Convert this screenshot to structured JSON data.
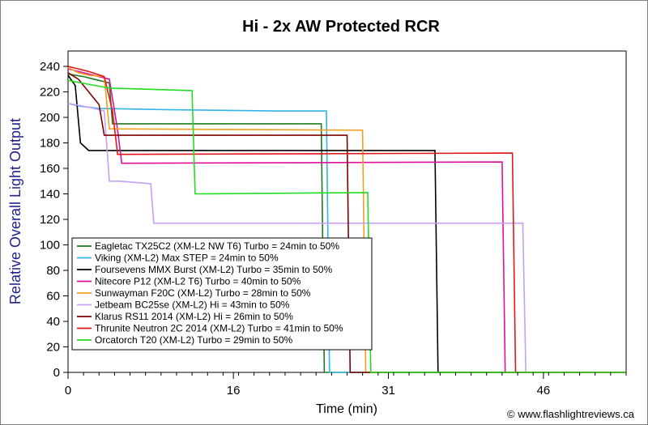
{
  "chart_data": {
    "type": "line",
    "title": "Hi - 2x AW Protected RCR",
    "xlabel": "Time (min)",
    "ylabel": "Relative Overall Light Output",
    "xlim": [
      0,
      54
    ],
    "ylim": [
      0,
      240
    ],
    "x_ticks": [
      0,
      16,
      31,
      46
    ],
    "y_ticks": [
      0,
      20,
      40,
      60,
      80,
      100,
      120,
      140,
      160,
      180,
      200,
      220,
      240
    ],
    "grid": false,
    "legend_position": "bottom-left",
    "credit": "© www.flashlightreviews.ca",
    "series": [
      {
        "name": "Eagletac TX25C2 (XM-L2 NW T6) Turbo = 24min to 50%",
        "color": "#1f7a1f",
        "x": [
          0,
          1.5,
          2.5,
          3,
          4,
          4.3,
          24.5,
          24.8,
          54
        ],
        "y": [
          234,
          232,
          230,
          229,
          227,
          195,
          195,
          0,
          0
        ]
      },
      {
        "name": "Viking  (XM-L2) Max STEP = 24min to 50%",
        "color": "#33b3e6",
        "x": [
          0,
          1,
          2,
          3,
          10,
          20,
          25,
          25.3,
          54
        ],
        "y": [
          211,
          209,
          208,
          207,
          206,
          205,
          205,
          0,
          0
        ]
      },
      {
        "name": "Foursevens MMX Burst (XM-L2) Turbo = 35min to 50%",
        "color": "#000000",
        "x": [
          0,
          0.7,
          1.2,
          2,
          35.5,
          35.8,
          54
        ],
        "y": [
          233,
          225,
          180,
          174,
          174,
          0,
          0
        ]
      },
      {
        "name": "Nitecore P12 (XM-L2 T6) Turbo = 40min to 50%",
        "color": "#e0109a",
        "x": [
          0,
          2,
          4,
          4.8,
          5.2,
          42,
          42.3,
          54
        ],
        "y": [
          238,
          234,
          230,
          190,
          164,
          165,
          0,
          0
        ]
      },
      {
        "name": "Sunwayman F20C (XM-L2) Turbo = 28min to 50%",
        "color": "#f0a020",
        "x": [
          0,
          1,
          2,
          3.5,
          4,
          28.5,
          28.8,
          54
        ],
        "y": [
          239,
          235,
          233,
          232,
          191,
          190,
          0,
          0
        ]
      },
      {
        "name": "Jetbeam BC25se (XM-L2) Hi = 43min to 50%",
        "color": "#c8a0f0",
        "x": [
          0,
          2,
          3.5,
          4,
          5,
          8,
          8.3,
          44,
          44.3,
          54
        ],
        "y": [
          211,
          208,
          205,
          150,
          150,
          148,
          117,
          117,
          0,
          0
        ]
      },
      {
        "name": "Klarus RS11 2014 (XM-L2) Hi = 26min to 50%",
        "color": "#800000",
        "x": [
          0,
          1,
          2,
          3,
          3.5,
          27,
          27.3,
          54
        ],
        "y": [
          235,
          230,
          220,
          210,
          186,
          186,
          0,
          0
        ]
      },
      {
        "name": "Thrunite Neutron 2C 2014 (XM-L2) Turbo = 41min to 50%",
        "color": "#e01818",
        "x": [
          0,
          2,
          3.5,
          4.3,
          4.8,
          43,
          43.3,
          54
        ],
        "y": [
          240,
          236,
          232,
          205,
          171,
          172,
          0,
          0
        ]
      },
      {
        "name": "Orcatorch T20 (XM-L2) Turbo = 29min to 50%",
        "color": "#22dd22",
        "x": [
          0,
          2,
          4,
          12,
          12.3,
          29,
          29.3,
          54
        ],
        "y": [
          229,
          226,
          223,
          221,
          140,
          141,
          0,
          0
        ]
      }
    ]
  }
}
